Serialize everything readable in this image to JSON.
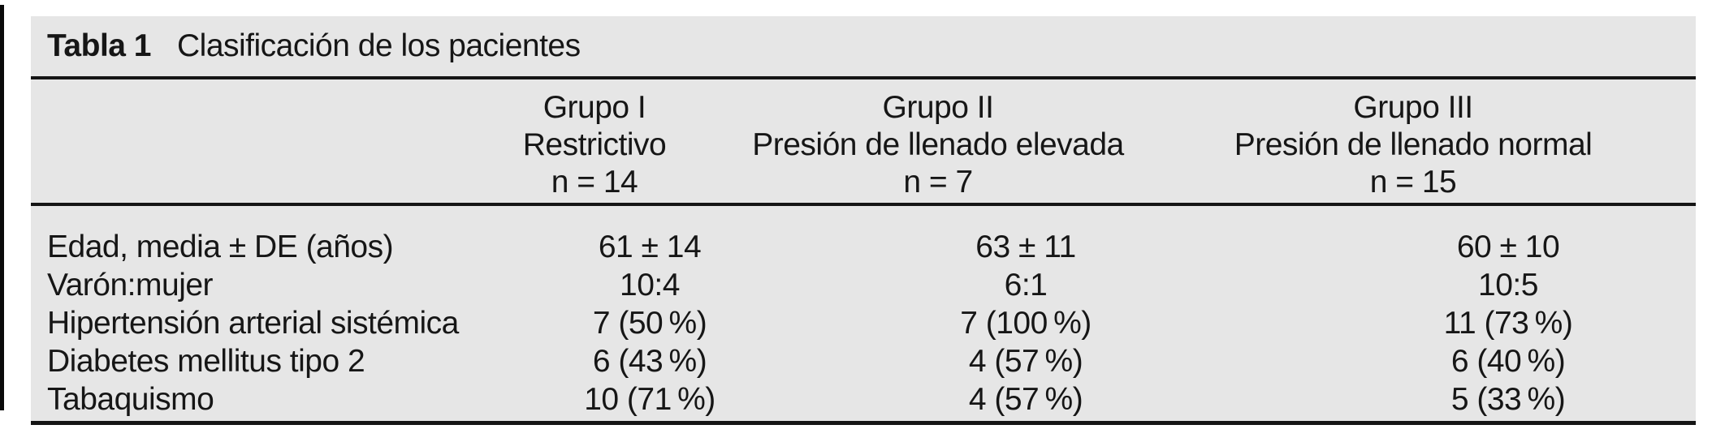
{
  "table": {
    "table_number": "Tabla 1",
    "table_title": "Clasificación de los pacientes",
    "columns": [
      {
        "group": "Grupo I",
        "subtitle": "Restrictivo",
        "n": "n = 14"
      },
      {
        "group": "Grupo II",
        "subtitle": "Presión de llenado elevada",
        "n": "n = 7"
      },
      {
        "group": "Grupo III",
        "subtitle": "Presión de llenado normal",
        "n": "n = 15"
      }
    ],
    "rows": [
      {
        "label": "Edad, media ± DE (años)",
        "values": [
          "61 ± 14",
          "63 ± 11",
          "60 ± 10"
        ]
      },
      {
        "label": "Varón:mujer",
        "values": [
          "10:4",
          "6:1",
          "10:5"
        ]
      },
      {
        "label": "Hipertensión arterial sistémica",
        "values": [
          "7 (50 %)",
          "7 (100 %)",
          "11 (73 %)"
        ]
      },
      {
        "label": "Diabetes mellitus tipo 2",
        "values": [
          "6 (43 %)",
          "4 (57 %)",
          "6 (40 %)"
        ]
      },
      {
        "label": "Tabaquismo",
        "values": [
          "10 (71 %)",
          "4 (57 %)",
          "5 (33 %)"
        ]
      }
    ],
    "colors": {
      "page_bg": "#ffffff",
      "panel_bg": "#e6e6e6",
      "text": "#161616",
      "rule": "#151515"
    }
  }
}
